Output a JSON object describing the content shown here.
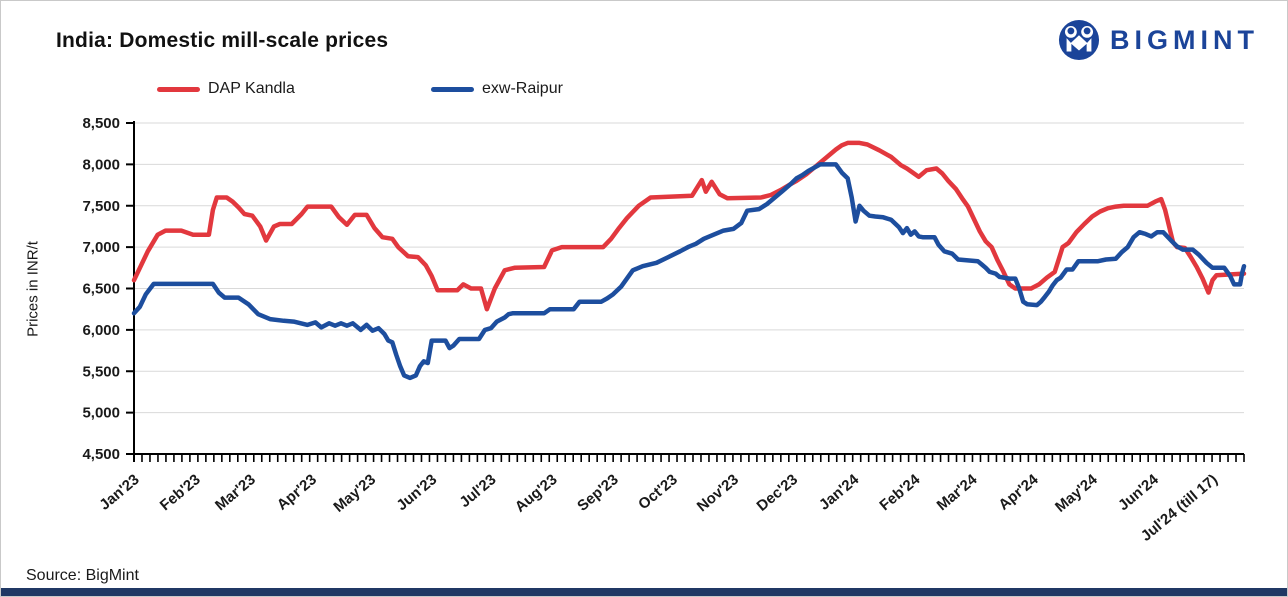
{
  "header": {
    "title": "India: Domestic mill-scale prices",
    "logo_text": "BIGMINT"
  },
  "source_text": "Source: BigMint",
  "colors": {
    "red_series": "#e2383e",
    "blue_series": "#1d4e9e",
    "logo_blue": "#1b4499",
    "bottom_bar": "#203864",
    "grid": "#d9d9d9",
    "axis": "#000000",
    "text": "#1a1a1a"
  },
  "chart_data": {
    "type": "line",
    "title": "India: Domestic mill-scale prices",
    "xlabel": "",
    "ylabel": "Prices in INR/t",
    "ylim": [
      4500,
      8500
    ],
    "ytick_step": 500,
    "grid": "horizontal",
    "legend_position": "top-left",
    "x_axis": {
      "unit": "days since Jan 1 2023",
      "span_days": 563,
      "months": [
        {
          "label": "Jan'23",
          "day": 0
        },
        {
          "label": "Feb'23",
          "day": 31
        },
        {
          "label": "Mar'23",
          "day": 59
        },
        {
          "label": "Apr'23",
          "day": 90
        },
        {
          "label": "May'23",
          "day": 120
        },
        {
          "label": "Jun'23",
          "day": 151
        },
        {
          "label": "Jul'23",
          "day": 181
        },
        {
          "label": "Aug'23",
          "day": 212
        },
        {
          "label": "Sep'23",
          "day": 243
        },
        {
          "label": "Oct'23",
          "day": 273
        },
        {
          "label": "Nov'23",
          "day": 304
        },
        {
          "label": "Dec'23",
          "day": 334
        },
        {
          "label": "Jan'24",
          "day": 365
        },
        {
          "label": "Feb'24",
          "day": 396
        },
        {
          "label": "Mar'24",
          "day": 425
        },
        {
          "label": "Apr'24",
          "day": 456
        },
        {
          "label": "May'24",
          "day": 486
        },
        {
          "label": "Jun'24",
          "day": 517
        },
        {
          "label": "Jul'24 (till 17)",
          "day": 547
        }
      ]
    },
    "series": [
      {
        "name": "DAP Kandla",
        "color": "#e2383e",
        "points": [
          [
            0,
            6600
          ],
          [
            7,
            6950
          ],
          [
            12,
            7150
          ],
          [
            16,
            7200
          ],
          [
            24,
            7200
          ],
          [
            30,
            7150
          ],
          [
            38,
            7150
          ],
          [
            40,
            7450
          ],
          [
            42,
            7600
          ],
          [
            47,
            7600
          ],
          [
            50,
            7550
          ],
          [
            53,
            7480
          ],
          [
            56,
            7400
          ],
          [
            60,
            7380
          ],
          [
            64,
            7250
          ],
          [
            67,
            7080
          ],
          [
            71,
            7250
          ],
          [
            74,
            7280
          ],
          [
            80,
            7280
          ],
          [
            85,
            7400
          ],
          [
            88,
            7490
          ],
          [
            100,
            7490
          ],
          [
            104,
            7360
          ],
          [
            108,
            7270
          ],
          [
            112,
            7390
          ],
          [
            118,
            7390
          ],
          [
            122,
            7230
          ],
          [
            126,
            7120
          ],
          [
            131,
            7100
          ],
          [
            134,
            7000
          ],
          [
            139,
            6890
          ],
          [
            144,
            6880
          ],
          [
            148,
            6780
          ],
          [
            151,
            6650
          ],
          [
            154,
            6480
          ],
          [
            164,
            6480
          ],
          [
            167,
            6550
          ],
          [
            171,
            6500
          ],
          [
            176,
            6500
          ],
          [
            179,
            6250
          ],
          [
            183,
            6500
          ],
          [
            188,
            6720
          ],
          [
            193,
            6750
          ],
          [
            208,
            6760
          ],
          [
            212,
            6960
          ],
          [
            217,
            7000
          ],
          [
            238,
            7000
          ],
          [
            242,
            7100
          ],
          [
            246,
            7230
          ],
          [
            250,
            7350
          ],
          [
            256,
            7500
          ],
          [
            262,
            7600
          ],
          [
            283,
            7620
          ],
          [
            288,
            7810
          ],
          [
            290,
            7670
          ],
          [
            293,
            7790
          ],
          [
            297,
            7640
          ],
          [
            301,
            7590
          ],
          [
            318,
            7600
          ],
          [
            323,
            7630
          ],
          [
            328,
            7690
          ],
          [
            333,
            7760
          ],
          [
            336,
            7800
          ],
          [
            341,
            7880
          ],
          [
            345,
            7960
          ],
          [
            348,
            8020
          ],
          [
            352,
            8100
          ],
          [
            356,
            8180
          ],
          [
            359,
            8230
          ],
          [
            362,
            8260
          ],
          [
            368,
            8260
          ],
          [
            372,
            8240
          ],
          [
            378,
            8170
          ],
          [
            384,
            8090
          ],
          [
            389,
            7990
          ],
          [
            392,
            7950
          ],
          [
            395,
            7900
          ],
          [
            398,
            7850
          ],
          [
            402,
            7930
          ],
          [
            407,
            7950
          ],
          [
            410,
            7890
          ],
          [
            413,
            7800
          ],
          [
            417,
            7700
          ],
          [
            420,
            7590
          ],
          [
            423,
            7490
          ],
          [
            426,
            7340
          ],
          [
            429,
            7190
          ],
          [
            432,
            7070
          ],
          [
            435,
            7000
          ],
          [
            438,
            6840
          ],
          [
            441,
            6700
          ],
          [
            444,
            6550
          ],
          [
            447,
            6500
          ],
          [
            455,
            6500
          ],
          [
            459,
            6550
          ],
          [
            463,
            6630
          ],
          [
            467,
            6700
          ],
          [
            469,
            6850
          ],
          [
            471,
            7000
          ],
          [
            474,
            7050
          ],
          [
            478,
            7180
          ],
          [
            482,
            7280
          ],
          [
            486,
            7370
          ],
          [
            490,
            7430
          ],
          [
            494,
            7470
          ],
          [
            498,
            7490
          ],
          [
            502,
            7500
          ],
          [
            514,
            7500
          ],
          [
            518,
            7550
          ],
          [
            521,
            7580
          ],
          [
            523,
            7450
          ],
          [
            525,
            7250
          ],
          [
            527,
            7060
          ],
          [
            529,
            7000
          ],
          [
            533,
            6990
          ],
          [
            536,
            6880
          ],
          [
            539,
            6760
          ],
          [
            542,
            6620
          ],
          [
            545,
            6450
          ],
          [
            547,
            6600
          ],
          [
            549,
            6660
          ],
          [
            563,
            6680
          ]
        ]
      },
      {
        "name": "exw-Raipur",
        "color": "#1d4e9e",
        "points": [
          [
            0,
            6200
          ],
          [
            3,
            6280
          ],
          [
            6,
            6430
          ],
          [
            10,
            6555
          ],
          [
            40,
            6555
          ],
          [
            43,
            6450
          ],
          [
            46,
            6390
          ],
          [
            53,
            6390
          ],
          [
            58,
            6310
          ],
          [
            63,
            6190
          ],
          [
            69,
            6130
          ],
          [
            76,
            6110
          ],
          [
            81,
            6100
          ],
          [
            88,
            6060
          ],
          [
            92,
            6090
          ],
          [
            95,
            6030
          ],
          [
            99,
            6080
          ],
          [
            102,
            6050
          ],
          [
            105,
            6080
          ],
          [
            108,
            6050
          ],
          [
            111,
            6080
          ],
          [
            115,
            6000
          ],
          [
            118,
            6060
          ],
          [
            121,
            5990
          ],
          [
            124,
            6020
          ],
          [
            127,
            5950
          ],
          [
            129,
            5870
          ],
          [
            131,
            5850
          ],
          [
            133,
            5700
          ],
          [
            135,
            5560
          ],
          [
            137,
            5450
          ],
          [
            140,
            5420
          ],
          [
            143,
            5450
          ],
          [
            145,
            5560
          ],
          [
            147,
            5620
          ],
          [
            149,
            5600
          ],
          [
            151,
            5870
          ],
          [
            158,
            5870
          ],
          [
            160,
            5780
          ],
          [
            162,
            5810
          ],
          [
            165,
            5890
          ],
          [
            175,
            5890
          ],
          [
            178,
            6000
          ],
          [
            181,
            6020
          ],
          [
            184,
            6100
          ],
          [
            188,
            6150
          ],
          [
            190,
            6190
          ],
          [
            192,
            6200
          ],
          [
            208,
            6200
          ],
          [
            211,
            6250
          ],
          [
            223,
            6250
          ],
          [
            226,
            6340
          ],
          [
            237,
            6340
          ],
          [
            240,
            6380
          ],
          [
            243,
            6430
          ],
          [
            247,
            6520
          ],
          [
            250,
            6620
          ],
          [
            253,
            6720
          ],
          [
            258,
            6770
          ],
          [
            265,
            6810
          ],
          [
            271,
            6880
          ],
          [
            277,
            6950
          ],
          [
            281,
            7000
          ],
          [
            285,
            7040
          ],
          [
            289,
            7100
          ],
          [
            294,
            7150
          ],
          [
            299,
            7200
          ],
          [
            304,
            7220
          ],
          [
            308,
            7290
          ],
          [
            311,
            7440
          ],
          [
            317,
            7460
          ],
          [
            321,
            7520
          ],
          [
            325,
            7600
          ],
          [
            329,
            7680
          ],
          [
            333,
            7760
          ],
          [
            336,
            7830
          ],
          [
            339,
            7870
          ],
          [
            342,
            7920
          ],
          [
            345,
            7960
          ],
          [
            348,
            8000
          ],
          [
            356,
            8000
          ],
          [
            359,
            7900
          ],
          [
            362,
            7830
          ],
          [
            364,
            7600
          ],
          [
            366,
            7310
          ],
          [
            368,
            7500
          ],
          [
            370,
            7440
          ],
          [
            373,
            7380
          ],
          [
            376,
            7370
          ],
          [
            380,
            7360
          ],
          [
            384,
            7330
          ],
          [
            388,
            7240
          ],
          [
            390,
            7170
          ],
          [
            392,
            7230
          ],
          [
            394,
            7150
          ],
          [
            396,
            7190
          ],
          [
            398,
            7130
          ],
          [
            400,
            7120
          ],
          [
            406,
            7120
          ],
          [
            408,
            7030
          ],
          [
            411,
            6950
          ],
          [
            415,
            6920
          ],
          [
            418,
            6850
          ],
          [
            428,
            6830
          ],
          [
            430,
            6790
          ],
          [
            432,
            6750
          ],
          [
            434,
            6700
          ],
          [
            437,
            6680
          ],
          [
            439,
            6640
          ],
          [
            444,
            6620
          ],
          [
            447,
            6620
          ],
          [
            449,
            6500
          ],
          [
            451,
            6340
          ],
          [
            453,
            6310
          ],
          [
            458,
            6300
          ],
          [
            460,
            6340
          ],
          [
            462,
            6400
          ],
          [
            464,
            6460
          ],
          [
            466,
            6540
          ],
          [
            468,
            6600
          ],
          [
            470,
            6630
          ],
          [
            473,
            6730
          ],
          [
            476,
            6730
          ],
          [
            479,
            6830
          ],
          [
            489,
            6830
          ],
          [
            493,
            6850
          ],
          [
            498,
            6860
          ],
          [
            501,
            6940
          ],
          [
            504,
            7000
          ],
          [
            507,
            7120
          ],
          [
            510,
            7180
          ],
          [
            513,
            7160
          ],
          [
            516,
            7130
          ],
          [
            519,
            7180
          ],
          [
            522,
            7180
          ],
          [
            526,
            7080
          ],
          [
            529,
            7010
          ],
          [
            532,
            6970
          ],
          [
            537,
            6970
          ],
          [
            540,
            6910
          ],
          [
            544,
            6810
          ],
          [
            547,
            6750
          ],
          [
            553,
            6750
          ],
          [
            556,
            6650
          ],
          [
            558,
            6550
          ],
          [
            561,
            6550
          ],
          [
            562,
            6680
          ],
          [
            563,
            6770
          ]
        ]
      }
    ]
  }
}
